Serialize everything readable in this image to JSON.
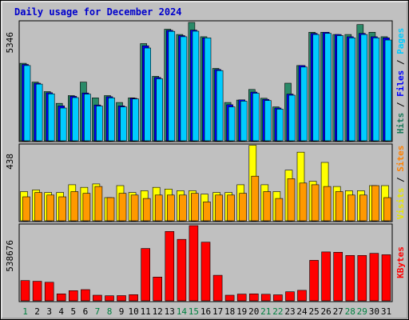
{
  "chart_data": {
    "type": "bar",
    "title": "Daily usage for December 2024",
    "categories": [
      "1",
      "2",
      "3",
      "4",
      "5",
      "6",
      "7",
      "8",
      "9",
      "10",
      "11",
      "12",
      "13",
      "14",
      "15",
      "16",
      "17",
      "18",
      "19",
      "20",
      "21",
      "22",
      "23",
      "24",
      "25",
      "26",
      "27",
      "28",
      "29",
      "30",
      "31"
    ],
    "weekend_days": [
      "1",
      "7",
      "8",
      "14",
      "15",
      "21",
      "22",
      "28",
      "29"
    ],
    "panels": [
      {
        "id": "top",
        "ymax_label": "5346",
        "ylim": [
          0,
          5346
        ],
        "right_labels": [
          {
            "text": "Hits",
            "color": "#1a7a5a"
          },
          {
            "text": " / ",
            "color": "#000000"
          },
          {
            "text": "Files",
            "color": "#0000ff"
          },
          {
            "text": " / ",
            "color": "#000000"
          },
          {
            "text": "Pages",
            "color": "#00ccff"
          }
        ],
        "series": [
          {
            "name": "Hits",
            "color": "#2a8a68",
            "values": [
              3500,
              2650,
              2220,
              1690,
              2040,
              2650,
              1940,
              2040,
              1730,
              1940,
              4390,
              2910,
              5040,
              4800,
              5346,
              4700,
              3270,
              1730,
              1840,
              2320,
              1920,
              1530,
              2600,
              3400,
              4900,
              4900,
              4800,
              4800,
              5250,
              4900,
              4700
            ]
          },
          {
            "name": "Files",
            "color": "#0000ff",
            "values": [
              3450,
              2600,
              2170,
              1580,
              2010,
              2160,
              1620,
              1990,
              1580,
              1920,
              4290,
              2860,
              4990,
              4750,
              5000,
              4650,
              3220,
              1630,
              1850,
              2200,
              1870,
              1480,
              2110,
              3400,
              4850,
              4900,
              4800,
              4700,
              4850,
              4700,
              4650
            ]
          },
          {
            "name": "Pages",
            "color": "#00ccff",
            "values": [
              3400,
              2560,
              2120,
              1480,
              1950,
              2110,
              1570,
              1940,
              1530,
              1890,
              4190,
              2800,
              4940,
              4700,
              4950,
              4650,
              3170,
              1530,
              1790,
              2150,
              1820,
              1430,
              2060,
              3330,
              4800,
              4850,
              4750,
              4650,
              4800,
              4650,
              4550
            ]
          }
        ]
      },
      {
        "id": "middle",
        "ymax_label": "438",
        "ylim": [
          0,
          438
        ],
        "right_labels": [
          {
            "text": "Visits",
            "color": "#e6e600"
          },
          {
            "text": " / ",
            "color": "#000000"
          },
          {
            "text": "Sites",
            "color": "#ff8000"
          }
        ],
        "series": [
          {
            "name": "Visits",
            "color": "#ffff00",
            "values": [
              170,
              180,
              165,
              165,
              210,
              195,
              215,
              135,
              205,
              165,
              175,
              195,
              185,
              175,
              175,
              155,
              165,
              165,
              210,
              440,
              210,
              170,
              295,
              400,
              230,
              340,
              200,
              175,
              175,
              205,
              205
            ]
          },
          {
            "name": "Sites",
            "color": "#ff9900",
            "values": [
              140,
              165,
              150,
              140,
              170,
              160,
              200,
              135,
              160,
              150,
              130,
              150,
              150,
              150,
              160,
              110,
              150,
              150,
              160,
              260,
              170,
              130,
              245,
              220,
              210,
              200,
              170,
              150,
              150,
              205,
              135
            ]
          }
        ]
      },
      {
        "id": "bottom",
        "ymax_label": "538676",
        "ylim": [
          0,
          538676
        ],
        "right_labels": [
          {
            "text": "KBytes",
            "color": "#ff0000"
          }
        ],
        "series": [
          {
            "name": "KBytes",
            "color": "#ff0000",
            "values": [
              145000,
              140000,
              133000,
              50000,
              73000,
              80000,
              40000,
              36000,
              37000,
              44000,
              375000,
              170000,
              497000,
              440000,
              538676,
              420000,
              183000,
              40000,
              48000,
              50000,
              47000,
              43000,
              65000,
              75000,
              290000,
              350000,
              348000,
              325000,
              325000,
              340000,
              330000
            ]
          }
        ]
      }
    ]
  }
}
